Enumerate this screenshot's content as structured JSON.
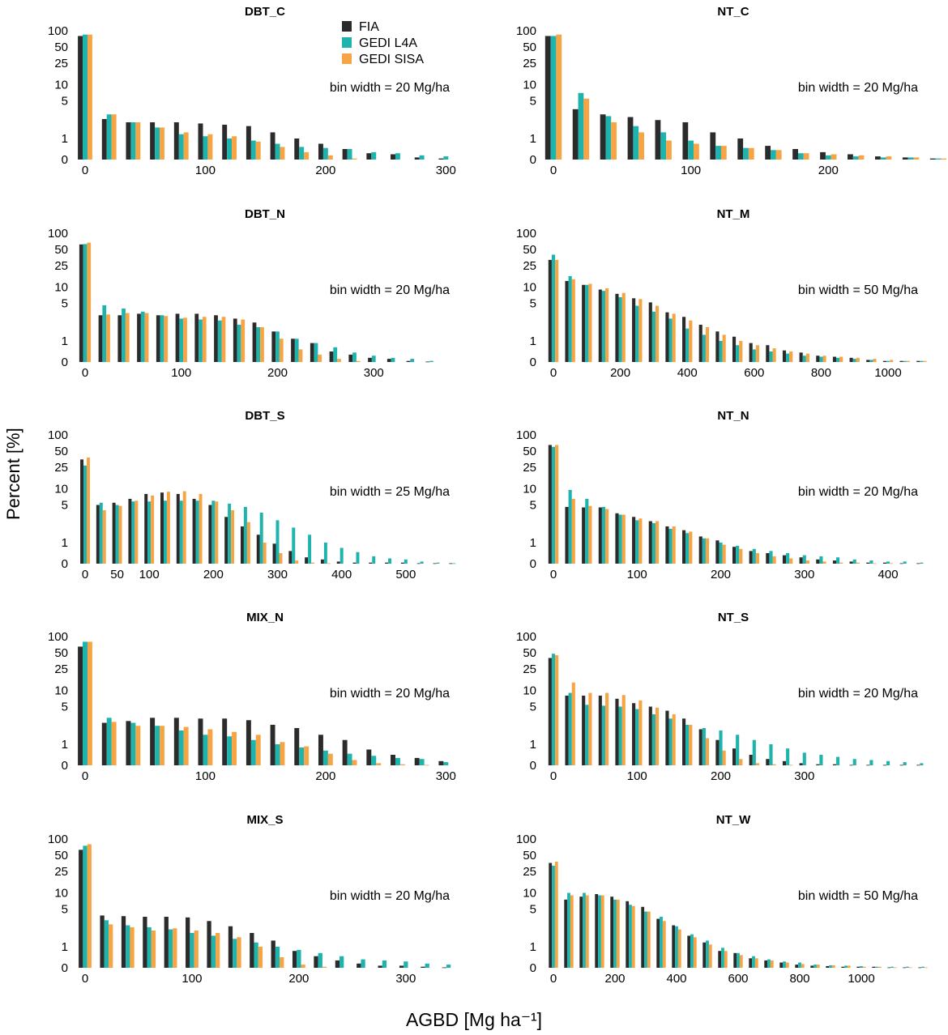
{
  "figure": {
    "ylabel": "Percent [%]",
    "xlabel": "AGBD [Mg ha⁻¹]",
    "legend": [
      {
        "label": "FIA",
        "color": "#2b2b2b"
      },
      {
        "label": "GEDI L4A",
        "color": "#1fb3ad"
      },
      {
        "label": "GEDI SISA",
        "color": "#f7a444"
      }
    ]
  },
  "chart_data": [
    {
      "type": "bar",
      "title": "DBT_C",
      "annotation": "bin width = 20 Mg/ha",
      "bin_width": 20,
      "yscale": "symlog",
      "yticks": [
        0,
        1,
        5,
        10,
        25,
        50,
        100
      ],
      "xmax": 320,
      "xticks": [
        0,
        100,
        200,
        300
      ],
      "series": [
        {
          "name": "FIA",
          "values": [
            80,
            2.3,
            2.0,
            2.0,
            2.0,
            1.9,
            1.8,
            1.7,
            1.3,
            1.0,
            0.75,
            0.5,
            0.3,
            0.25,
            0.1,
            0.05
          ]
        },
        {
          "name": "GEDI L4A",
          "values": [
            85,
            2.8,
            2.0,
            1.6,
            1.2,
            1.1,
            1.0,
            0.9,
            0.75,
            0.6,
            0.55,
            0.5,
            0.35,
            0.3,
            0.2,
            0.15
          ]
        },
        {
          "name": "GEDI SISA",
          "values": [
            85,
            2.8,
            2.0,
            1.6,
            1.3,
            1.2,
            1.1,
            0.85,
            0.6,
            0.35,
            0.2,
            0.05,
            0,
            0,
            0,
            0
          ]
        }
      ]
    },
    {
      "type": "bar",
      "title": "NT_C",
      "annotation": "bin width = 20 Mg/ha",
      "bin_width": 20,
      "yscale": "symlog",
      "yticks": [
        0,
        1,
        5,
        10,
        25,
        50,
        100
      ],
      "xmax": 280,
      "xticks": [
        0,
        100,
        200
      ],
      "series": [
        {
          "name": "FIA",
          "values": [
            80,
            3.5,
            2.8,
            2.5,
            2.2,
            2.0,
            1.3,
            1.0,
            0.65,
            0.5,
            0.35,
            0.25,
            0.15,
            0.1,
            0.05
          ]
        },
        {
          "name": "GEDI L4A",
          "values": [
            80,
            7.0,
            2.6,
            1.7,
            1.3,
            0.9,
            0.65,
            0.55,
            0.45,
            0.3,
            0.2,
            0.15,
            0.1,
            0.1,
            0.05
          ]
        },
        {
          "name": "GEDI SISA",
          "values": [
            85,
            5.5,
            2.0,
            1.3,
            0.9,
            0.75,
            0.65,
            0.55,
            0.45,
            0.3,
            0.25,
            0.2,
            0.15,
            0.1,
            0.05
          ]
        }
      ]
    },
    {
      "type": "bar",
      "title": "DBT_N",
      "annotation": "bin width = 20 Mg/ha",
      "bin_width": 20,
      "yscale": "symlog",
      "yticks": [
        0,
        1,
        5,
        10,
        25,
        50,
        100
      ],
      "xmax": 400,
      "xticks": [
        0,
        100,
        200,
        300
      ],
      "series": [
        {
          "name": "FIA",
          "values": [
            62,
            3.0,
            3.0,
            3.2,
            3.0,
            3.2,
            3.2,
            3.0,
            2.6,
            2.2,
            1.5,
            1.1,
            0.9,
            0.5,
            0.35,
            0.2,
            0.15,
            0.05,
            0.02
          ]
        },
        {
          "name": "GEDI L4A",
          "values": [
            63,
            4.6,
            4.0,
            3.5,
            3.0,
            2.6,
            2.5,
            2.4,
            2.0,
            1.8,
            1.5,
            1.1,
            0.9,
            0.7,
            0.45,
            0.3,
            0.2,
            0.15,
            0.05
          ]
        },
        {
          "name": "GEDI SISA",
          "values": [
            67,
            3.1,
            3.3,
            3.3,
            2.9,
            2.7,
            2.8,
            2.8,
            2.5,
            1.8,
            1.1,
            0.6,
            0.35,
            0.15,
            0.05,
            0,
            0,
            0,
            0
          ]
        }
      ]
    },
    {
      "type": "bar",
      "title": "NT_M",
      "annotation": "bin width = 50 Mg/ha",
      "bin_width": 50,
      "yscale": "symlog",
      "yticks": [
        0,
        1,
        5,
        10,
        25,
        50,
        100
      ],
      "xmax": 1150,
      "xticks": [
        0,
        200,
        400,
        600,
        800,
        1000
      ],
      "series": [
        {
          "name": "FIA",
          "values": [
            32,
            13,
            11,
            9,
            7.5,
            6.2,
            5.2,
            3.4,
            2.8,
            2.0,
            1.5,
            1.2,
            0.9,
            0.8,
            0.55,
            0.45,
            0.3,
            0.25,
            0.2,
            0.1,
            0.05,
            0.05,
            0.05
          ]
        },
        {
          "name": "GEDI L4A",
          "values": [
            40,
            16,
            11,
            8.5,
            6.5,
            4.5,
            3.5,
            2.6,
            1.7,
            1.3,
            1.0,
            0.8,
            0.6,
            0.5,
            0.4,
            0.3,
            0.25,
            0.2,
            0.15,
            0.1,
            0.05,
            0.05,
            0.05
          ]
        },
        {
          "name": "GEDI SISA",
          "values": [
            32,
            14,
            11.5,
            9.5,
            7.8,
            6.0,
            4.5,
            3.2,
            2.4,
            1.8,
            1.3,
            1.0,
            0.8,
            0.65,
            0.5,
            0.4,
            0.3,
            0.25,
            0.2,
            0.15,
            0.1,
            0.05,
            0.05
          ]
        }
      ]
    },
    {
      "type": "bar",
      "title": "DBT_S",
      "annotation": "bin width = 25 Mg/ha",
      "bin_width": 25,
      "yscale": "symlog",
      "yticks": [
        0,
        1,
        5,
        10,
        25,
        50,
        100
      ],
      "xmax": 600,
      "xticks": [
        0,
        50,
        100,
        200,
        300,
        400,
        500
      ],
      "series": [
        {
          "name": "FIA",
          "values": [
            35,
            5.0,
            5.5,
            6.5,
            8.0,
            8.5,
            8.0,
            6.5,
            5.0,
            3.0,
            2.0,
            1.4,
            0.95,
            0.6,
            0.3,
            0.2,
            0.1,
            0.05,
            0.05,
            0.05,
            0.05,
            0.02,
            0.02,
            0.02
          ]
        },
        {
          "name": "GEDI L4A",
          "values": [
            27,
            5.5,
            5.0,
            5.8,
            5.8,
            6.0,
            6.0,
            6.0,
            6.0,
            5.3,
            4.6,
            3.6,
            2.6,
            1.9,
            1.4,
            1.0,
            0.75,
            0.55,
            0.35,
            0.25,
            0.2,
            0.1,
            0.05,
            0.02
          ]
        },
        {
          "name": "GEDI SISA",
          "values": [
            38,
            4.0,
            4.8,
            6.0,
            7.5,
            8.8,
            9.0,
            8.0,
            5.8,
            4.0,
            2.4,
            1.0,
            0.5,
            0.15,
            0.05,
            0.02,
            0,
            0,
            0,
            0,
            0,
            0,
            0,
            0
          ]
        }
      ]
    },
    {
      "type": "bar",
      "title": "NT_N",
      "annotation": "bin width = 20 Mg/ha",
      "bin_width": 20,
      "yscale": "symlog",
      "yticks": [
        0,
        1,
        5,
        10,
        25,
        50,
        100
      ],
      "xmax": 460,
      "xticks": [
        0,
        100,
        200,
        300,
        400
      ],
      "series": [
        {
          "name": "FIA",
          "values": [
            65,
            4.6,
            4.5,
            4.5,
            3.5,
            3.0,
            2.5,
            2.0,
            1.7,
            1.3,
            1.1,
            0.8,
            0.6,
            0.5,
            0.4,
            0.3,
            0.2,
            0.15,
            0.1,
            0.05,
            0.05,
            0.02,
            0.02
          ]
        },
        {
          "name": "GEDI L4A",
          "values": [
            60,
            9.5,
            6.5,
            4.6,
            3.3,
            2.6,
            2.3,
            1.8,
            1.5,
            1.2,
            1.0,
            0.85,
            0.7,
            0.6,
            0.5,
            0.4,
            0.35,
            0.3,
            0.2,
            0.15,
            0.1,
            0.1,
            0.05
          ]
        },
        {
          "name": "GEDI SISA",
          "values": [
            65,
            6.5,
            4.8,
            4.2,
            3.3,
            2.8,
            2.5,
            2.0,
            1.6,
            1.2,
            0.9,
            0.7,
            0.5,
            0.35,
            0.25,
            0.15,
            0.1,
            0.05,
            0.05,
            0.02,
            0.02,
            0,
            0
          ]
        }
      ]
    },
    {
      "type": "bar",
      "title": "MIX_N",
      "annotation": "bin width = 20 Mg/ha",
      "bin_width": 20,
      "yscale": "symlog",
      "yticks": [
        0,
        1,
        5,
        10,
        25,
        50,
        100
      ],
      "xmax": 320,
      "xticks": [
        0,
        100,
        200,
        300
      ],
      "series": [
        {
          "name": "FIA",
          "values": [
            65,
            2.5,
            2.7,
            3.1,
            3.1,
            3.0,
            3.0,
            2.8,
            2.3,
            2.0,
            1.5,
            1.2,
            0.75,
            0.5,
            0.35,
            0.2
          ]
        },
        {
          "name": "GEDI L4A",
          "values": [
            80,
            3.1,
            2.5,
            2.2,
            1.8,
            1.5,
            1.4,
            1.2,
            1.0,
            0.85,
            0.7,
            0.55,
            0.45,
            0.35,
            0.3,
            0.15
          ]
        },
        {
          "name": "GEDI SISA",
          "values": [
            80,
            2.6,
            2.2,
            2.2,
            2.1,
            1.9,
            1.7,
            1.5,
            1.1,
            0.9,
            0.55,
            0.25,
            0.1,
            0.05,
            0.02,
            0
          ]
        }
      ]
    },
    {
      "type": "bar",
      "title": "NT_S",
      "annotation": "bin width = 20 Mg/ha",
      "bin_width": 20,
      "yscale": "symlog",
      "yticks": [
        0,
        1,
        5,
        10,
        25,
        50,
        100
      ],
      "xmax": 460,
      "xticks": [
        0,
        100,
        200,
        300
      ],
      "series": [
        {
          "name": "FIA",
          "values": [
            40,
            8.0,
            8.0,
            8.0,
            7.0,
            5.8,
            5.0,
            4.2,
            3.0,
            1.9,
            1.2,
            0.8,
            0.5,
            0.3,
            0.2,
            0.1,
            0.05,
            0.05,
            0.02,
            0.02,
            0.02,
            0.02,
            0.02
          ]
        },
        {
          "name": "GEDI L4A",
          "values": [
            48,
            9.0,
            5.4,
            5.2,
            5.0,
            4.5,
            3.6,
            3.0,
            2.3,
            2.0,
            1.8,
            1.5,
            1.2,
            1.0,
            0.8,
            0.6,
            0.5,
            0.4,
            0.3,
            0.25,
            0.2,
            0.15,
            0.1
          ]
        },
        {
          "name": "GEDI SISA",
          "values": [
            45,
            14.0,
            9.0,
            9.0,
            8.2,
            6.5,
            4.8,
            3.6,
            2.3,
            1.3,
            0.7,
            0.3,
            0.1,
            0.05,
            0.02,
            0,
            0,
            0,
            0,
            0,
            0,
            0,
            0
          ]
        }
      ]
    },
    {
      "type": "bar",
      "title": "MIX_S",
      "annotation": "bin width = 20 Mg/ha",
      "bin_width": 20,
      "yscale": "symlog",
      "yticks": [
        0,
        1,
        5,
        10,
        25,
        50,
        100
      ],
      "xmax": 360,
      "xticks": [
        0,
        100,
        200,
        300
      ],
      "series": [
        {
          "name": "FIA",
          "values": [
            63,
            3.8,
            3.7,
            3.6,
            3.6,
            3.5,
            3.0,
            2.4,
            1.8,
            1.3,
            0.8,
            0.55,
            0.35,
            0.2,
            0.1,
            0.1,
            0.05,
            0.02
          ]
        },
        {
          "name": "GEDI L4A",
          "values": [
            75,
            3.1,
            2.5,
            2.3,
            2.1,
            1.8,
            1.6,
            1.4,
            1.2,
            1.0,
            0.85,
            0.7,
            0.55,
            0.4,
            0.35,
            0.3,
            0.2,
            0.15
          ]
        },
        {
          "name": "GEDI SISA",
          "values": [
            80,
            2.6,
            2.3,
            2.0,
            2.2,
            2.0,
            1.8,
            1.5,
            1.0,
            0.5,
            0.15,
            0.05,
            0,
            0,
            0,
            0,
            0,
            0
          ]
        }
      ]
    },
    {
      "type": "bar",
      "title": "NT_W",
      "annotation": "bin width = 50 Mg/ha",
      "bin_width": 50,
      "yscale": "symlog",
      "yticks": [
        0,
        1,
        5,
        10,
        25,
        50,
        100
      ],
      "xmax": 1250,
      "xticks": [
        0,
        200,
        400,
        600,
        800,
        1000
      ],
      "series": [
        {
          "name": "FIA",
          "values": [
            36,
            7.5,
            8.5,
            9.5,
            8.5,
            7.0,
            5.5,
            3.3,
            2.5,
            1.6,
            1.2,
            0.8,
            0.7,
            0.45,
            0.35,
            0.25,
            0.15,
            0.1,
            0.08,
            0.05,
            0.05,
            0.05,
            0.02,
            0.02,
            0.02
          ]
        },
        {
          "name": "GEDI L4A",
          "values": [
            32,
            10.0,
            10.0,
            9.0,
            7.5,
            6.0,
            4.5,
            3.6,
            2.4,
            1.7,
            1.3,
            0.95,
            0.7,
            0.55,
            0.4,
            0.3,
            0.25,
            0.15,
            0.12,
            0.1,
            0.08,
            0.05,
            0.05,
            0.05,
            0.05
          ]
        },
        {
          "name": "GEDI SISA",
          "values": [
            38,
            9.0,
            9.0,
            9.0,
            7.5,
            5.7,
            4.5,
            3.0,
            2.1,
            1.5,
            1.1,
            0.8,
            0.6,
            0.45,
            0.35,
            0.25,
            0.18,
            0.15,
            0.12,
            0.1,
            0.05,
            0.05,
            0.02,
            0.02,
            0.02
          ]
        }
      ]
    }
  ]
}
